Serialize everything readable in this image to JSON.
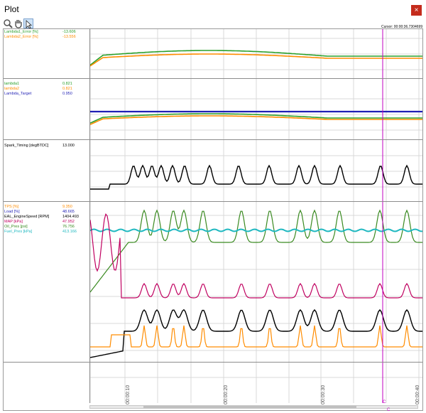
{
  "window": {
    "title": "Plot",
    "close_glyph": "×"
  },
  "toolbar": {
    "tools": [
      {
        "name": "zoom-tool",
        "icon": "magnifier-icon"
      },
      {
        "name": "pan-tool",
        "icon": "hand-icon"
      },
      {
        "name": "select-tool",
        "icon": "pointer-icon",
        "active": true
      }
    ]
  },
  "cursor": {
    "label": "Cursor: 00:00:36.7304699"
  },
  "panes": [
    {
      "signals": [
        {
          "name": "Lambda1_Error [%]",
          "value": "-13.606",
          "color": "#2ca02c"
        },
        {
          "name": "Lambda2_Error [%]",
          "value": "-13.556",
          "color": "#ff8c00"
        }
      ]
    },
    {
      "signals": [
        {
          "name": "lambda1",
          "value": "0.821",
          "color": "#2ca02c"
        },
        {
          "name": "lambda2",
          "value": "0.821",
          "color": "#ff8c00"
        },
        {
          "name": "Lambda_Target",
          "value": "0.950",
          "color": "#1f1fb4"
        }
      ]
    },
    {
      "signals": [
        {
          "name": "Spark_Timing [degBTDC]",
          "value": "13.000",
          "color": "#000000"
        }
      ]
    },
    {
      "signals": [
        {
          "name": "TPS [%]",
          "value": "9.350",
          "color": "#ff8c00"
        },
        {
          "name": "Load [%]",
          "value": "48.665",
          "color": "#1f1fb4"
        },
        {
          "name": "EAL_EngineSpeed [RPM]",
          "value": "1404.493",
          "color": "#000000"
        },
        {
          "name": "MAP [kPa]",
          "value": "47.952",
          "color": "#c00060"
        },
        {
          "name": "Oil_Pres [psi]",
          "value": "76.756",
          "color": "#3a8a20"
        },
        {
          "name": "Fuel_Pres [kPa]",
          "value": "413.166",
          "color": "#1fb8c0"
        }
      ]
    }
  ],
  "time_axis": {
    "ticks": [
      "00:00:10",
      "00:00:20",
      "00:00:30",
      "00:00:40"
    ]
  },
  "cursor_markers": [
    "C",
    "C"
  ]
}
